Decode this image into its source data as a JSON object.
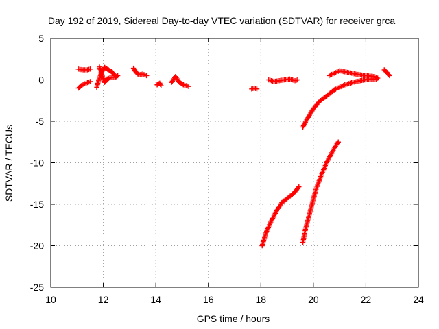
{
  "chart_data": {
    "type": "scatter",
    "title": "Day 192 of 2019, Sidereal Day-to-day VTEC variation (SDTVAR) for receiver grca",
    "xlabel": "GPS time / hours",
    "ylabel": "SDTVAR / TECUs",
    "xlim": [
      10,
      24
    ],
    "ylim": [
      -25,
      5
    ],
    "xticks": [
      "10",
      "12",
      "14",
      "16",
      "18",
      "20",
      "22",
      "24"
    ],
    "yticks": [
      "5",
      "0",
      "-5",
      "-10",
      "-15",
      "-20",
      "-25"
    ],
    "grid": true,
    "marker": "plus",
    "color": "#ff0000",
    "series": [
      {
        "segments": [
          [
            [
              11.05,
              1.3
            ],
            [
              11.2,
              1.2
            ],
            [
              11.4,
              1.2
            ],
            [
              11.5,
              1.3
            ]
          ],
          [
            [
              11.05,
              -1.0
            ],
            [
              11.2,
              -0.6
            ],
            [
              11.35,
              -0.4
            ],
            [
              11.5,
              -0.2
            ]
          ],
          [
            [
              11.75,
              -0.9
            ],
            [
              11.85,
              0.2
            ],
            [
              11.95,
              1.0
            ],
            [
              12.05,
              1.5
            ],
            [
              12.2,
              1.2
            ],
            [
              12.35,
              0.9
            ],
            [
              12.45,
              0.5
            ]
          ],
          [
            [
              11.85,
              1.6
            ],
            [
              11.95,
              0.6
            ],
            [
              12.05,
              -0.3
            ],
            [
              12.15,
              0.1
            ],
            [
              12.3,
              0.3
            ],
            [
              12.45,
              0.3
            ],
            [
              12.55,
              0.5
            ]
          ],
          [
            [
              13.15,
              1.4
            ],
            [
              13.25,
              0.9
            ],
            [
              13.35,
              0.6
            ],
            [
              13.5,
              0.7
            ],
            [
              13.65,
              0.5
            ]
          ],
          [
            [
              14.05,
              -0.6
            ],
            [
              14.15,
              -0.4
            ],
            [
              14.2,
              -0.7
            ]
          ],
          [
            [
              14.6,
              -0.3
            ],
            [
              14.75,
              0.4
            ],
            [
              14.9,
              -0.3
            ],
            [
              15.05,
              -0.6
            ],
            [
              15.25,
              -0.8
            ]
          ],
          [
            [
              17.65,
              -1.1
            ],
            [
              17.75,
              -1.0
            ],
            [
              17.85,
              -1.1
            ]
          ],
          [
            [
              18.3,
              0.0
            ],
            [
              18.5,
              -0.2
            ],
            [
              18.7,
              -0.1
            ],
            [
              18.9,
              0.0
            ],
            [
              19.1,
              0.1
            ],
            [
              19.3,
              -0.1
            ],
            [
              19.4,
              0.0
            ]
          ],
          [
            [
              20.6,
              0.5
            ],
            [
              20.8,
              0.8
            ],
            [
              21.0,
              1.1
            ],
            [
              21.3,
              0.9
            ],
            [
              21.6,
              0.7
            ],
            [
              22.0,
              0.5
            ],
            [
              22.3,
              0.4
            ],
            [
              22.45,
              0.2
            ]
          ],
          [
            [
              22.7,
              1.2
            ],
            [
              22.8,
              0.9
            ],
            [
              22.9,
              0.5
            ]
          ],
          [
            [
              19.6,
              -5.7
            ],
            [
              19.75,
              -4.8
            ],
            [
              19.9,
              -4.0
            ],
            [
              20.0,
              -3.5
            ],
            [
              20.2,
              -2.7
            ],
            [
              20.4,
              -2.2
            ],
            [
              20.6,
              -1.7
            ],
            [
              20.8,
              -1.2
            ],
            [
              21.0,
              -0.9
            ],
            [
              21.2,
              -0.6
            ],
            [
              21.5,
              -0.3
            ],
            [
              21.8,
              -0.1
            ],
            [
              22.1,
              0.1
            ],
            [
              22.4,
              0.1
            ]
          ],
          [
            [
              18.05,
              -20.0
            ],
            [
              18.2,
              -18.4
            ],
            [
              18.4,
              -17.0
            ],
            [
              18.6,
              -15.8
            ],
            [
              18.8,
              -14.8
            ],
            [
              19.0,
              -14.3
            ],
            [
              19.2,
              -13.8
            ],
            [
              19.3,
              -13.5
            ],
            [
              19.45,
              -12.9
            ]
          ],
          [
            [
              19.6,
              -19.6
            ],
            [
              19.7,
              -18.0
            ],
            [
              19.8,
              -16.8
            ],
            [
              19.95,
              -15.0
            ],
            [
              20.1,
              -13.2
            ],
            [
              20.3,
              -11.5
            ],
            [
              20.5,
              -10.0
            ],
            [
              20.7,
              -8.8
            ],
            [
              20.9,
              -7.7
            ],
            [
              20.95,
              -7.5
            ]
          ]
        ]
      }
    ]
  }
}
